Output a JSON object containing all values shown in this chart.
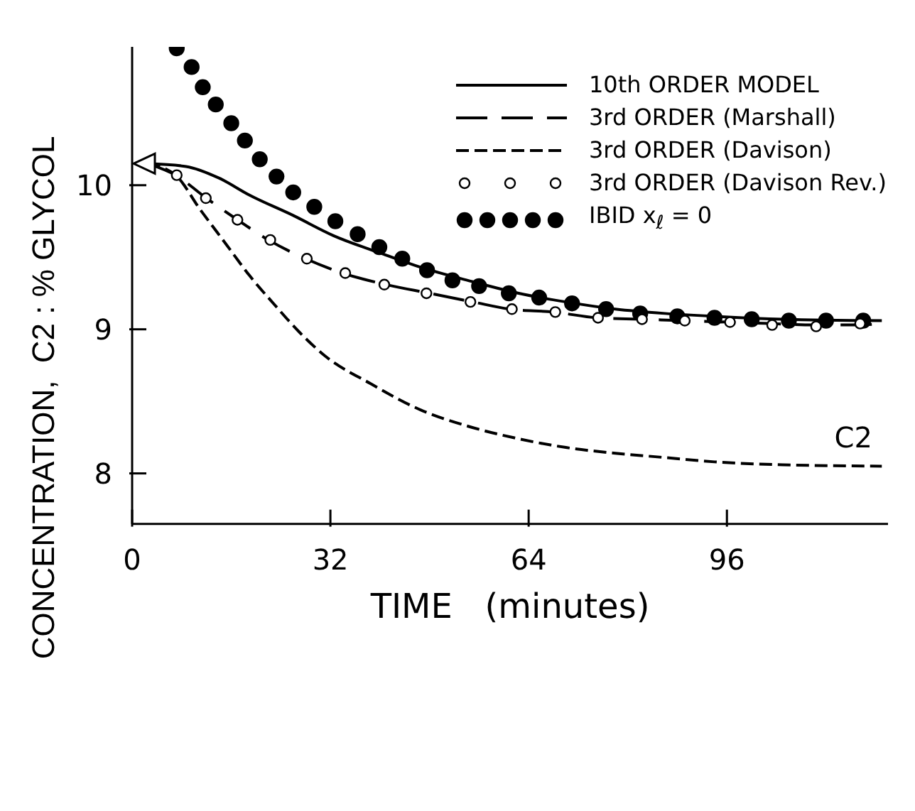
{
  "chart_data": {
    "type": "line",
    "xlabel": "TIME   (minutes)",
    "ylabel": "CONCENTRATION,  C2 : % GLYCOL",
    "xlim": [
      0,
      122
    ],
    "xticks": [
      0,
      32,
      64,
      96
    ],
    "ylim": [
      7.65,
      10.96
    ],
    "yticks": [
      8,
      9,
      10
    ],
    "legend": "top right",
    "annotations": [
      "C2"
    ],
    "series": [
      {
        "name": "10th  ORDER  MODEL",
        "line_style": "solid",
        "color": "#000000",
        "x": [
          2.5,
          8.7,
          14,
          19,
          26,
          32.5,
          40,
          46.6,
          55,
          62.4,
          70,
          78,
          86,
          94,
          105,
          121
        ],
        "values": [
          10.15,
          10.13,
          10.05,
          9.93,
          9.79,
          9.65,
          9.53,
          9.43,
          9.33,
          9.25,
          9.19,
          9.14,
          9.11,
          9.09,
          9.07,
          9.06
        ]
      },
      {
        "name": "3rd  ORDER  (Marshall)",
        "line_style": "dashed",
        "color": "#000000",
        "x": [
          2.5,
          7,
          12,
          17,
          22,
          28,
          34,
          41,
          48,
          55,
          61,
          68,
          75,
          82,
          89,
          96,
          103,
          110,
          117,
          121
        ],
        "values": [
          10.15,
          10.07,
          9.91,
          9.76,
          9.62,
          9.49,
          9.39,
          9.31,
          9.25,
          9.19,
          9.14,
          9.12,
          9.08,
          9.07,
          9.06,
          9.05,
          9.04,
          9.03,
          9.03,
          9.04
        ]
      },
      {
        "name": "3rd  ORDER  (Davison)",
        "line_style": "dashed",
        "color": "#000000",
        "x": [
          2.5,
          7,
          11,
          15,
          19,
          23,
          27,
          31,
          38.6,
          46.6,
          54,
          62.4,
          70,
          78,
          86,
          94,
          105,
          121
        ],
        "values": [
          10.15,
          10.07,
          9.83,
          9.6,
          9.37,
          9.17,
          8.98,
          8.82,
          8.62,
          8.44,
          8.33,
          8.24,
          8.18,
          8.14,
          8.11,
          8.08,
          8.06,
          8.05
        ]
      },
      {
        "name": "3rd  ORDER  (Davison  Rev.)",
        "type": "scatter",
        "marker": "circle",
        "color": "#ffffff",
        "x": [
          7.2,
          11.9,
          17,
          22.3,
          28.2,
          34.4,
          40.7,
          47.5,
          54.6,
          61.3,
          68.3,
          75.2,
          82.3,
          89.2,
          96.5,
          103.3,
          110.4,
          117.5
        ],
        "values": [
          10.07,
          9.91,
          9.76,
          9.62,
          9.49,
          9.39,
          9.31,
          9.25,
          9.19,
          9.14,
          9.12,
          9.08,
          9.07,
          9.06,
          9.05,
          9.03,
          9.02,
          9.04
        ]
      },
      {
        "name": "IBID x$_{ℓ}$ = 0",
        "type": "scatter",
        "marker": "circle",
        "color": "#000000",
        "x": [
          7.2,
          9.6,
          11.4,
          13.5,
          16,
          18.2,
          20.6,
          23.3,
          26,
          29.4,
          32.8,
          36.4,
          39.9,
          43.6,
          47.6,
          51.7,
          56,
          60.8,
          65.7,
          71,
          76.5,
          82,
          88,
          94,
          100,
          106,
          112,
          118
        ],
        "values": [
          10.95,
          10.82,
          10.68,
          10.56,
          10.43,
          10.31,
          10.18,
          10.06,
          9.95,
          9.85,
          9.75,
          9.66,
          9.57,
          9.49,
          9.41,
          9.34,
          9.3,
          9.25,
          9.22,
          9.18,
          9.14,
          9.11,
          9.09,
          9.08,
          9.07,
          9.06,
          9.06,
          9.06
        ]
      }
    ]
  }
}
